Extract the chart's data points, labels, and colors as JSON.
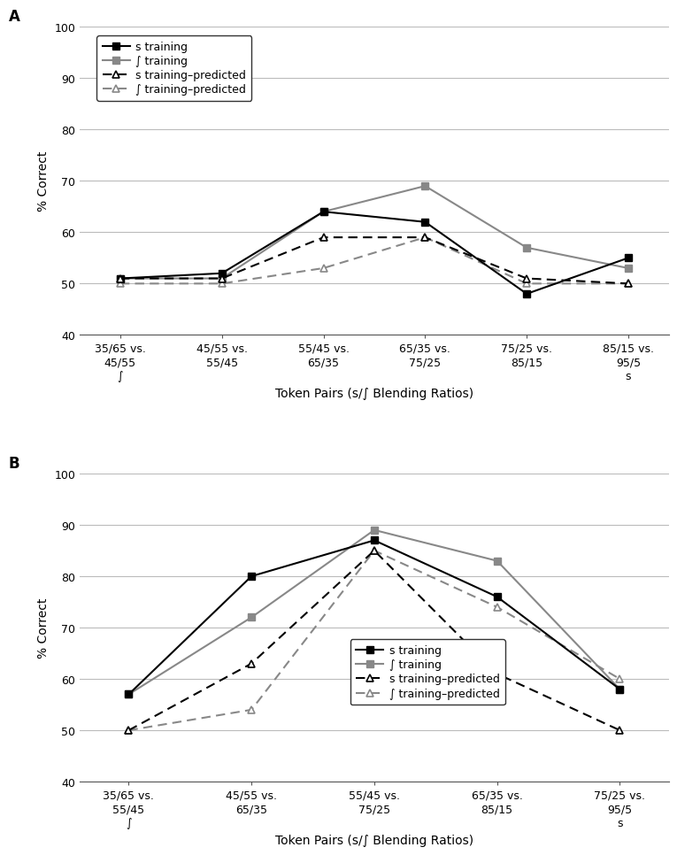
{
  "panel_a": {
    "title": "A",
    "x_labels": [
      "35/65 vs.\n45/55\n∫",
      "45/55 vs.\n55/45",
      "55/45 vs.\n65/35",
      "65/35 vs.\n75/25",
      "75/25 vs.\n85/15",
      "85/15 vs.\n95/5\ns"
    ],
    "s_training": [
      51,
      52,
      64,
      62,
      48,
      55
    ],
    "sh_training": [
      51,
      51,
      64,
      69,
      57,
      53
    ],
    "s_predicted": [
      51,
      51,
      59,
      59,
      51,
      50
    ],
    "sh_predicted": [
      50,
      50,
      53,
      59,
      50,
      50
    ],
    "ylim": [
      40,
      100
    ],
    "yticks": [
      40,
      50,
      60,
      70,
      80,
      90,
      100
    ]
  },
  "panel_b": {
    "title": "B",
    "x_labels": [
      "35/65 vs.\n55/45\n∫",
      "45/55 vs.\n65/35",
      "55/45 vs.\n75/25",
      "65/35 vs.\n85/15",
      "75/25 vs.\n95/5\ns"
    ],
    "s_training": [
      57,
      80,
      87,
      76,
      58
    ],
    "sh_training": [
      57,
      72,
      89,
      83,
      58
    ],
    "s_predicted": [
      50,
      63,
      85,
      61,
      50
    ],
    "sh_predicted": [
      50,
      54,
      85,
      74,
      60
    ],
    "ylim": [
      40,
      100
    ],
    "yticks": [
      40,
      50,
      60,
      70,
      80,
      90,
      100
    ]
  },
  "ylabel": "% Correct",
  "xlabel": "Token Pairs (s/∫ Blending Ratios)",
  "legend_labels": [
    "s training",
    "∫ training",
    "s training–predicted",
    "∫ training–predicted"
  ],
  "color_s": "#000000",
  "color_sh": "#888888",
  "fontsize_label": 10,
  "fontsize_tick": 9,
  "fontsize_title": 12,
  "fontsize_legend": 9,
  "bg_color": "#ffffff"
}
